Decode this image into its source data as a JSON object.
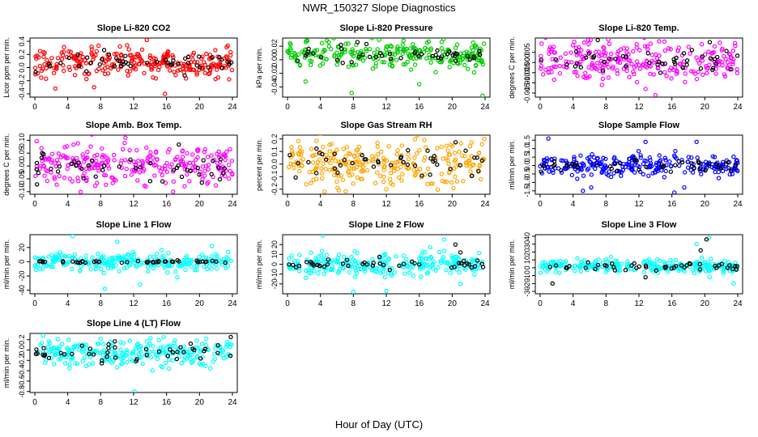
{
  "page": {
    "title": "NWR_150327  Slope Diagnostics",
    "xlabel": "Hour of Day (UTC)"
  },
  "chart_data": [
    {
      "type": "scatter",
      "title": "Slope Li-820 CO2",
      "ylabel": "Licor ppm per min.",
      "xlim": [
        0,
        24
      ],
      "xticks": [
        0,
        4,
        8,
        12,
        16,
        20,
        24
      ],
      "ylim": [
        -0.45,
        0.45
      ],
      "yticks": [
        -0.4,
        -0.2,
        0.0,
        0.2,
        0.4
      ],
      "ytick_labels": [
        "-0.4",
        "-0.2",
        "0.0",
        "0.2",
        "0.4"
      ],
      "series": [
        {
          "color": "#ff0000",
          "center": 0.08,
          "spread": 0.11,
          "outliers": [
            [
              2.5,
              -0.32
            ],
            [
              7.2,
              -0.3
            ],
            [
              13.6,
              0.42
            ],
            [
              15.8,
              -0.4
            ],
            [
              23.6,
              -0.18
            ]
          ]
        },
        {
          "color": "#000000",
          "center": 0.08,
          "spread": 0.07,
          "outliers": [
            [
              5.2,
              0.2
            ],
            [
              18.2,
              -0.12
            ]
          ]
        }
      ]
    },
    {
      "type": "scatter",
      "title": "Slope Li-820 Pressure",
      "ylabel": "kPa per min.",
      "xlim": [
        0,
        24
      ],
      "xticks": [
        0,
        4,
        8,
        12,
        16,
        20,
        24
      ],
      "ylim": [
        -0.055,
        0.032
      ],
      "yticks": [
        -0.04,
        -0.02,
        0.0,
        0.02
      ],
      "ytick_labels": [
        "-0.04",
        "-0.02",
        "0.00",
        "0.02"
      ],
      "series": [
        {
          "color": "#00cc00",
          "center": 0.007,
          "spread": 0.01,
          "outliers": [
            [
              2.2,
              -0.032
            ],
            [
              7.8,
              -0.049
            ],
            [
              16.0,
              -0.036
            ],
            [
              23.7,
              -0.053
            ],
            [
              5.0,
              0.026
            ]
          ]
        },
        {
          "color": "#000000",
          "center": 0.008,
          "spread": 0.006,
          "outliers": [
            [
              6.5,
              0.022
            ],
            [
              8.5,
              0.026
            ]
          ]
        }
      ]
    },
    {
      "type": "scatter",
      "title": "Slope Li-820 Temp.",
      "ylabel": "degrees C per min.",
      "xlim": [
        0,
        24
      ],
      "xticks": [
        0,
        4,
        8,
        12,
        16,
        20,
        24
      ],
      "ylim": [
        -0.017,
        0.012
      ],
      "yticks": [
        -0.015,
        -0.01,
        -0.005,
        0.0,
        0.005
      ],
      "ytick_labels": [
        "-0.015",
        "-0.010",
        "-0.005",
        "0.000",
        "0.005"
      ],
      "series": [
        {
          "color": "#ff00ff",
          "center": 0.001,
          "spread": 0.0045,
          "outliers": [
            [
              7.5,
              -0.011
            ],
            [
              12.8,
              -0.013
            ],
            [
              14.0,
              -0.016
            ]
          ]
        },
        {
          "color": "#000000",
          "center": 0.001,
          "spread": 0.003,
          "outliers": [
            [
              7.0,
              0.011
            ],
            [
              20.6,
              0.01
            ]
          ]
        }
      ]
    },
    {
      "type": "scatter",
      "title": "Slope Amb. Box Temp.",
      "ylabel": "degrees C per min.",
      "xlim": [
        0,
        24
      ],
      "xticks": [
        0,
        4,
        8,
        12,
        16,
        20,
        24
      ],
      "ylim": [
        -0.11,
        0.12
      ],
      "yticks": [
        -0.1,
        -0.05,
        0.0,
        0.05,
        0.1
      ],
      "ytick_labels": [
        "-0.10",
        "-0.05",
        "0.00",
        "0.05",
        "0.10"
      ],
      "series": [
        {
          "color": "#ff00ff",
          "center": 0.005,
          "spread": 0.04,
          "outliers": [
            [
              11.0,
              0.11
            ],
            [
              16.8,
              -0.1
            ],
            [
              13.5,
              -0.08
            ]
          ]
        },
        {
          "color": "#000000",
          "center": 0.0,
          "spread": 0.03,
          "outliers": [
            [
              15.5,
              -0.06
            ]
          ]
        }
      ]
    },
    {
      "type": "scatter",
      "title": "Slope Gas Stream RH",
      "ylabel": "percent per min.",
      "xlim": [
        0,
        24
      ],
      "xticks": [
        0,
        4,
        8,
        12,
        16,
        20,
        24
      ],
      "ylim": [
        -0.24,
        0.23
      ],
      "yticks": [
        -0.2,
        -0.1,
        0.0,
        0.1,
        0.2
      ],
      "ytick_labels": [
        "-0.2",
        "-0.1",
        "0.0",
        "0.1",
        "0.2"
      ],
      "series": [
        {
          "color": "#ffa500",
          "center": 0.01,
          "spread": 0.09,
          "outliers": [
            [
              4.5,
              -0.22
            ],
            [
              12.0,
              -0.2
            ],
            [
              23.9,
              0.2
            ]
          ]
        },
        {
          "color": "#000000",
          "center": 0.0,
          "spread": 0.07,
          "outliers": []
        }
      ]
    },
    {
      "type": "scatter",
      "title": "Slope Sample Flow",
      "ylabel": "ml/min per min.",
      "xlim": [
        0,
        24
      ],
      "xticks": [
        0,
        4,
        8,
        12,
        16,
        20,
        24
      ],
      "ylim": [
        -1.7,
        1.8
      ],
      "yticks": [
        -1.5,
        -1.0,
        -0.5,
        0.0,
        0.5,
        1.0,
        1.5
      ],
      "ytick_labels": [
        "-1.5",
        "-1.0",
        "-0.5",
        "0.0",
        "0.5",
        "1.0",
        "1.5"
      ],
      "series": [
        {
          "color": "#0000ff",
          "center": 0.0,
          "spread": 0.3,
          "outliers": [
            [
              1.0,
              1.6
            ],
            [
              5.2,
              -1.5
            ],
            [
              6.2,
              -1.3
            ],
            [
              12.8,
              1.4
            ],
            [
              16.3,
              -1.6
            ],
            [
              17.5,
              -1.3
            ],
            [
              19.0,
              1.4
            ]
          ]
        },
        {
          "color": "#000000",
          "center": 0.0,
          "spread": 0.2,
          "outliers": []
        }
      ]
    },
    {
      "type": "scatter",
      "title": "Slope Line 1 Flow",
      "ylabel": "ml/min per min.",
      "xlim": [
        0,
        24
      ],
      "xticks": [
        0,
        4,
        8,
        12,
        16,
        20,
        24
      ],
      "ylim": [
        -45,
        38
      ],
      "yticks": [
        -40,
        -20,
        0,
        20
      ],
      "ytick_labels": [
        "-40",
        "-20",
        "0",
        "20"
      ],
      "series": [
        {
          "color": "#00ffff",
          "center": 0.0,
          "spread": 6,
          "outliers": [
            [
              4.6,
              36
            ],
            [
              8.5,
              -38
            ],
            [
              12.8,
              -32
            ],
            [
              10.0,
              28
            ],
            [
              17.3,
              -22
            ],
            [
              21.5,
              22
            ]
          ]
        },
        {
          "color": "#000000",
          "center": 0.0,
          "spread": 0.8,
          "outliers": []
        }
      ]
    },
    {
      "type": "scatter",
      "title": "Slope Line 2 Flow",
      "ylabel": "ml/min per min.",
      "xlim": [
        0,
        24
      ],
      "xticks": [
        0,
        4,
        8,
        12,
        16,
        20,
        24
      ],
      "ylim": [
        -30,
        30
      ],
      "yticks": [
        -20,
        -10,
        0,
        10,
        20
      ],
      "ytick_labels": [
        "-20",
        "-10",
        "0",
        "10",
        "20"
      ],
      "series": [
        {
          "color": "#00ffff",
          "center": 0.0,
          "spread": 6,
          "outliers": [
            [
              4.3,
              29
            ],
            [
              8.0,
              -28
            ],
            [
              12.0,
              -27
            ],
            [
              19.0,
              25
            ],
            [
              21.0,
              -20
            ]
          ]
        },
        {
          "color": "#000000",
          "center": 0.0,
          "spread": 3,
          "outliers": [
            [
              20.4,
              20
            ],
            [
              21.0,
              12
            ]
          ]
        }
      ]
    },
    {
      "type": "scatter",
      "title": "Slope Line 3 Flow",
      "ylabel": "ml/min per min.",
      "xlim": [
        0,
        24
      ],
      "xticks": [
        0,
        4,
        8,
        12,
        16,
        20,
        24
      ],
      "ylim": [
        -33,
        42
      ],
      "yticks": [
        -30,
        -20,
        -10,
        0,
        10,
        20,
        30,
        40
      ],
      "ytick_labels": [
        "-30",
        "-20",
        "-10",
        "0",
        "10",
        "20",
        "30",
        "40"
      ],
      "series": [
        {
          "color": "#00ffff",
          "center": 2.0,
          "spread": 4,
          "outliers": [
            [
              19.0,
              30
            ],
            [
              20.5,
              38
            ],
            [
              20.6,
              -12
            ],
            [
              23.5,
              -20
            ]
          ]
        },
        {
          "color": "#000000",
          "center": 2.0,
          "spread": 3,
          "outliers": [
            [
              1.5,
              -20
            ],
            [
              19.5,
              22
            ],
            [
              20.2,
              36
            ],
            [
              12.8,
              -12
            ]
          ]
        }
      ]
    },
    {
      "type": "scatter",
      "title": "Slope Line 4 (LT) Flow",
      "ylabel": "ml/min per min.",
      "xlim": [
        0,
        24
      ],
      "xticks": [
        0,
        4,
        8,
        12,
        16,
        20,
        24
      ],
      "ylim": [
        -0.82,
        0.32
      ],
      "yticks": [
        -0.8,
        -0.6,
        -0.4,
        -0.2,
        0.0,
        0.2
      ],
      "ytick_labels": [
        "-0.8",
        "-0.6",
        "-0.4",
        "-0.2",
        "0.0",
        "0.2"
      ],
      "series": [
        {
          "color": "#00ffff",
          "center": -0.05,
          "spread": 0.13,
          "outliers": [
            [
              12.1,
              -0.8
            ],
            [
              1.0,
              0.28
            ]
          ]
        },
        {
          "color": "#000000",
          "center": -0.05,
          "spread": 0.09,
          "outliers": [
            [
              23.8,
              0.25
            ]
          ]
        }
      ]
    }
  ]
}
